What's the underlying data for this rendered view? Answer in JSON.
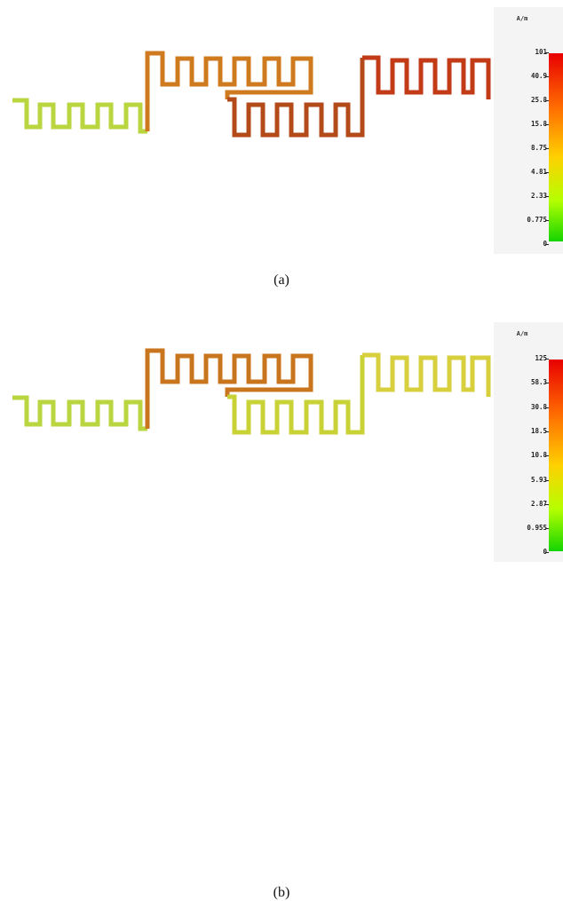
{
  "panels": [
    {
      "id": "a",
      "caption": "(a)",
      "legend": {
        "unit": "A/m",
        "ticks": [
          "101",
          "40.9",
          "25.8",
          "15.8",
          "8.75",
          "4.81",
          "2.33",
          "0.775",
          "0"
        ]
      },
      "colors": {
        "left_meander": "#b9d640",
        "upper_meander": "#cf7a1e",
        "lower_meander": "#b34a1a",
        "right_meander": "#c23a16"
      }
    },
    {
      "id": "b",
      "caption": "(b)",
      "legend": {
        "unit": "A/m",
        "ticks": [
          "125",
          "58.3",
          "30.8",
          "18.5",
          "10.8",
          "5.93",
          "2.87",
          "0.955",
          "0"
        ]
      },
      "colors": {
        "left_meander": "#b9d640",
        "upper_meander": "#c9751e",
        "lower_meander": "#c8d236",
        "right_meander": "#d7cf3c"
      }
    }
  ]
}
